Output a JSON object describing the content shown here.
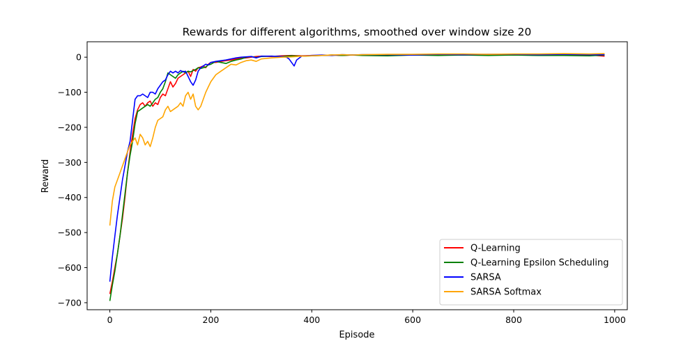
{
  "chart_data": {
    "type": "line",
    "title": "Rewards for different algorithms, smoothed over window size 20",
    "xlabel": "Episode",
    "ylabel": "Reward",
    "xlim": [
      -45,
      1025
    ],
    "ylim": [
      -720,
      44
    ],
    "xticks": [
      0,
      200,
      400,
      600,
      800,
      1000
    ],
    "yticks": [
      -700,
      -600,
      -500,
      -400,
      -300,
      -200,
      -100,
      0
    ],
    "legend_position": "lower-right",
    "grid": false,
    "series": [
      {
        "name": "Q-Learning",
        "color": "#ff0000",
        "x": [
          0,
          5,
          10,
          15,
          20,
          25,
          30,
          35,
          40,
          45,
          50,
          55,
          60,
          65,
          70,
          75,
          80,
          85,
          90,
          95,
          100,
          105,
          110,
          115,
          120,
          125,
          130,
          135,
          140,
          145,
          150,
          155,
          160,
          165,
          170,
          175,
          180,
          185,
          190,
          195,
          200,
          210,
          220,
          230,
          240,
          250,
          260,
          270,
          280,
          290,
          300,
          320,
          340,
          360,
          380,
          400,
          420,
          440,
          460,
          480,
          500,
          550,
          600,
          650,
          700,
          750,
          800,
          850,
          900,
          950,
          980
        ],
        "y": [
          -675,
          -640,
          -600,
          -560,
          -510,
          -460,
          -400,
          -330,
          -270,
          -220,
          -175,
          -150,
          -135,
          -130,
          -140,
          -130,
          -125,
          -140,
          -130,
          -135,
          -115,
          -105,
          -110,
          -90,
          -70,
          -85,
          -75,
          -60,
          -55,
          -50,
          -45,
          -40,
          -55,
          -35,
          -40,
          -30,
          -28,
          -25,
          -30,
          -20,
          -15,
          -15,
          -12,
          -10,
          -8,
          -5,
          -3,
          -2,
          0,
          2,
          3,
          2,
          4,
          5,
          4,
          5,
          5,
          6,
          5,
          6,
          6,
          5,
          6,
          7,
          6,
          6,
          7,
          6,
          7,
          6,
          3
        ]
      },
      {
        "name": "Q-Learning Epsilon Scheduling",
        "color": "#008000",
        "x": [
          0,
          5,
          10,
          15,
          20,
          25,
          30,
          35,
          40,
          45,
          50,
          55,
          60,
          65,
          70,
          75,
          80,
          85,
          90,
          95,
          100,
          105,
          110,
          115,
          120,
          125,
          130,
          135,
          140,
          145,
          150,
          155,
          160,
          165,
          170,
          175,
          180,
          185,
          190,
          195,
          200,
          210,
          220,
          230,
          240,
          250,
          260,
          270,
          280,
          290,
          300,
          320,
          340,
          360,
          380,
          400,
          420,
          440,
          460,
          480,
          500,
          550,
          600,
          650,
          700,
          750,
          800,
          850,
          900,
          950,
          980
        ],
        "y": [
          -695,
          -650,
          -610,
          -560,
          -510,
          -450,
          -390,
          -330,
          -280,
          -240,
          -190,
          -155,
          -150,
          -145,
          -140,
          -135,
          -140,
          -130,
          -120,
          -115,
          -100,
          -90,
          -70,
          -45,
          -50,
          -55,
          -60,
          -50,
          -45,
          -40,
          -45,
          -40,
          -42,
          -38,
          -35,
          -30,
          -32,
          -30,
          -28,
          -22,
          -20,
          -12,
          -15,
          -18,
          -12,
          -8,
          -5,
          0,
          2,
          -1,
          2,
          3,
          2,
          4,
          3,
          4,
          5,
          6,
          5,
          6,
          5,
          4,
          6,
          5,
          6,
          5,
          6,
          5,
          5,
          4,
          6
        ]
      },
      {
        "name": "SARSA",
        "color": "#0000ff",
        "x": [
          0,
          5,
          10,
          15,
          20,
          25,
          30,
          35,
          40,
          45,
          50,
          55,
          60,
          65,
          70,
          75,
          80,
          85,
          90,
          95,
          100,
          105,
          110,
          115,
          120,
          125,
          130,
          135,
          140,
          145,
          150,
          155,
          160,
          165,
          170,
          175,
          180,
          185,
          190,
          195,
          200,
          210,
          220,
          230,
          240,
          250,
          260,
          270,
          280,
          290,
          300,
          320,
          340,
          350,
          355,
          360,
          365,
          370,
          380,
          400,
          420,
          440,
          460,
          480,
          500,
          550,
          600,
          650,
          700,
          750,
          800,
          850,
          900,
          950,
          980
        ],
        "y": [
          -640,
          -570,
          -510,
          -450,
          -400,
          -350,
          -310,
          -270,
          -240,
          -180,
          -120,
          -110,
          -110,
          -105,
          -110,
          -115,
          -100,
          -100,
          -105,
          -90,
          -80,
          -70,
          -65,
          -50,
          -40,
          -45,
          -40,
          -45,
          -38,
          -42,
          -40,
          -55,
          -70,
          -80,
          -65,
          -40,
          -30,
          -25,
          -20,
          -22,
          -15,
          -12,
          -10,
          -8,
          -5,
          -2,
          0,
          1,
          2,
          -2,
          3,
          3,
          2,
          0,
          -5,
          -15,
          -25,
          -8,
          3,
          5,
          6,
          5,
          7,
          6,
          7,
          7,
          6,
          8,
          7,
          8,
          8,
          7,
          8,
          7,
          7
        ]
      },
      {
        "name": "SARSA Softmax",
        "color": "#ffa500",
        "x": [
          0,
          5,
          10,
          15,
          20,
          25,
          30,
          35,
          40,
          45,
          50,
          55,
          60,
          65,
          70,
          75,
          80,
          85,
          90,
          95,
          100,
          105,
          110,
          115,
          120,
          125,
          130,
          135,
          140,
          145,
          150,
          155,
          160,
          165,
          170,
          175,
          180,
          185,
          190,
          195,
          200,
          210,
          220,
          230,
          240,
          250,
          260,
          270,
          280,
          290,
          300,
          320,
          340,
          360,
          380,
          400,
          420,
          440,
          460,
          480,
          500,
          550,
          600,
          650,
          700,
          750,
          800,
          850,
          900,
          950,
          980
        ],
        "y": [
          -480,
          -410,
          -370,
          -350,
          -330,
          -310,
          -290,
          -270,
          -250,
          -240,
          -230,
          -250,
          -220,
          -230,
          -250,
          -240,
          -255,
          -230,
          -200,
          -180,
          -175,
          -170,
          -150,
          -140,
          -155,
          -150,
          -145,
          -140,
          -130,
          -140,
          -110,
          -100,
          -120,
          -105,
          -140,
          -150,
          -140,
          -120,
          -100,
          -85,
          -70,
          -50,
          -40,
          -30,
          -20,
          -22,
          -15,
          -10,
          -8,
          -12,
          -5,
          -2,
          0,
          1,
          3,
          4,
          5,
          6,
          7,
          6,
          7,
          8,
          8,
          9,
          9,
          8,
          9,
          9,
          10,
          9,
          10
        ]
      }
    ]
  }
}
